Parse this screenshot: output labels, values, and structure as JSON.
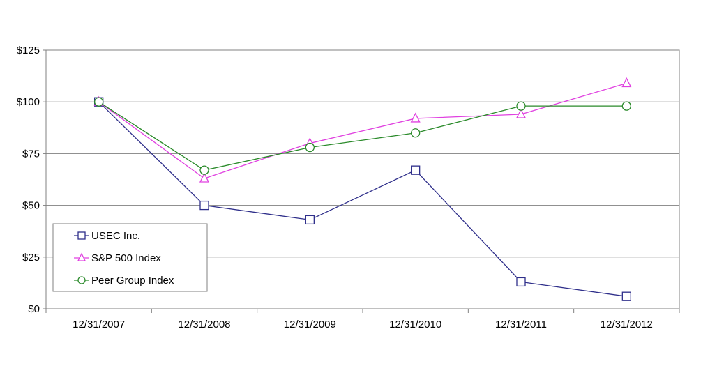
{
  "chart_data": {
    "type": "line",
    "title": "",
    "xlabel": "",
    "ylabel": "",
    "categories": [
      "12/31/2007",
      "12/31/2008",
      "12/31/2009",
      "12/31/2010",
      "12/31/2011",
      "12/31/2012"
    ],
    "y_ticks": [
      "$0",
      "$25",
      "$50",
      "$75",
      "$100",
      "$125"
    ],
    "ylim": [
      0,
      125
    ],
    "grid": true,
    "legend_position": "bottom-left",
    "series": [
      {
        "name": "USEC Inc.",
        "marker": "square",
        "color": "#2e2e8a",
        "values": [
          100,
          50,
          43,
          67,
          13,
          6
        ]
      },
      {
        "name": "S&P 500 Index",
        "marker": "triangle",
        "color": "#e040e0",
        "values": [
          100,
          63,
          80,
          92,
          94,
          109
        ]
      },
      {
        "name": "Peer Group Index",
        "marker": "circle",
        "color": "#2a8a2a",
        "values": [
          100,
          67,
          78,
          85,
          98,
          98
        ]
      }
    ]
  }
}
